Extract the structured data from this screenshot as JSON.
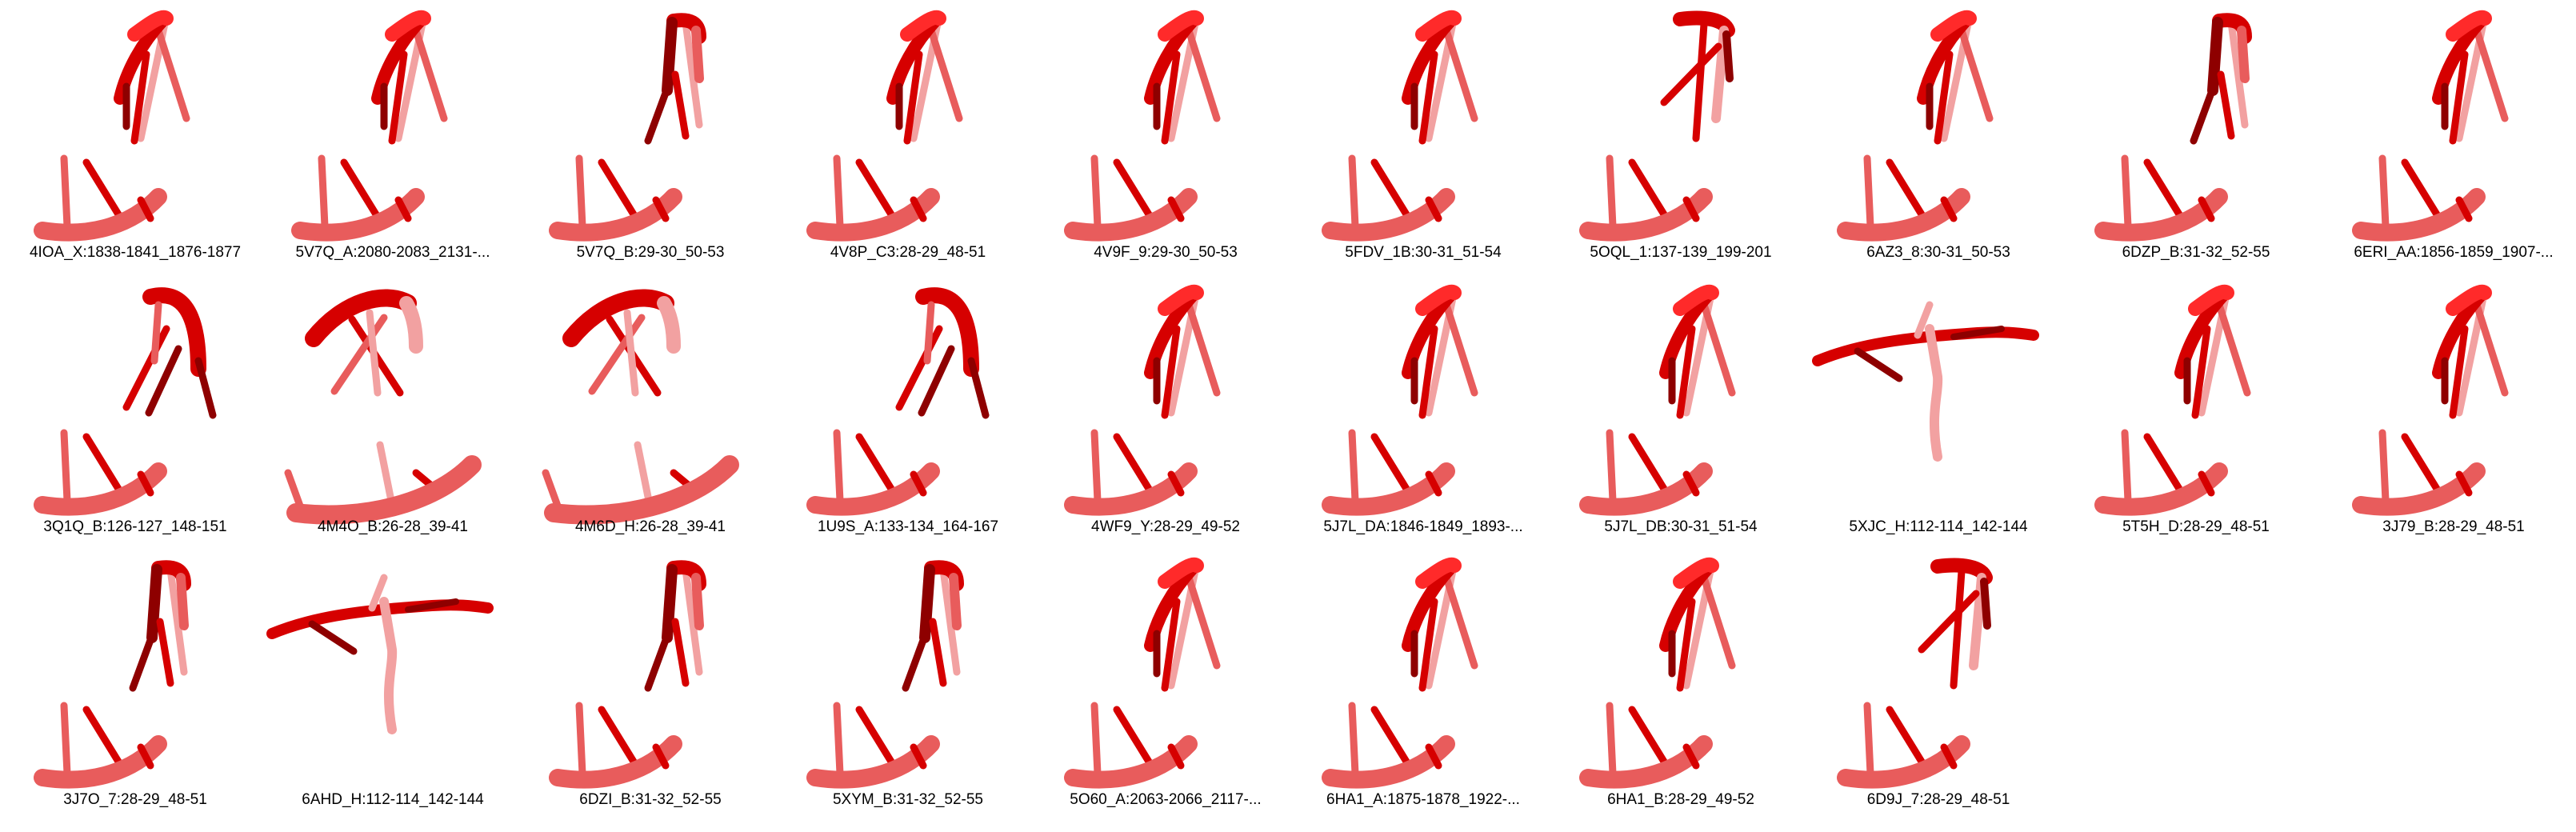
{
  "colors": {
    "dark": "#8e0000",
    "main": "#d60000",
    "bright": "#ff2a2a",
    "light": "#e85c5c",
    "pale": "#f2a1a1",
    "background": "#ffffff"
  },
  "panels": [
    {
      "label": "4IOA_X:1838-1841_1876-1877",
      "icon": "rna-helix-loop-icon",
      "variant": "slant-loop"
    },
    {
      "label": "5V7Q_A:2080-2083_2131-...",
      "icon": "rna-helix-loop-icon",
      "variant": "slant-loop"
    },
    {
      "label": "5V7Q_B:29-30_50-53",
      "icon": "rna-helix-loop-icon",
      "variant": "boxed-loop"
    },
    {
      "label": "4V8P_C3:28-29_48-51",
      "icon": "rna-helix-loop-icon",
      "variant": "slant-loop"
    },
    {
      "label": "4V9F_9:29-30_50-53",
      "icon": "rna-helix-loop-icon",
      "variant": "slant-loop"
    },
    {
      "label": "5FDV_1B:30-31_51-54",
      "icon": "rna-helix-loop-icon",
      "variant": "slant-loop"
    },
    {
      "label": "5OQL_1:137-139_199-201",
      "icon": "rna-helix-loop-icon",
      "variant": "flag-loop"
    },
    {
      "label": "6AZ3_8:30-31_50-53",
      "icon": "rna-helix-loop-icon",
      "variant": "slant-loop"
    },
    {
      "label": "6DZP_B:31-32_52-55",
      "icon": "rna-helix-loop-icon",
      "variant": "boxed-loop"
    },
    {
      "label": "6ERI_AA:1856-1859_1907-...",
      "icon": "rna-helix-loop-icon",
      "variant": "slant-loop"
    },
    {
      "label": "3Q1Q_B:126-127_148-151",
      "icon": "rna-helix-loop-icon",
      "variant": "hook-loop"
    },
    {
      "label": "4M4O_B:26-28_39-41",
      "icon": "rna-helix-loop-icon",
      "variant": "cross-loop"
    },
    {
      "label": "4M6D_H:26-28_39-41",
      "icon": "rna-helix-loop-icon",
      "variant": "cross-loop"
    },
    {
      "label": "1U9S_A:133-134_164-167",
      "icon": "rna-helix-loop-icon",
      "variant": "hook-loop"
    },
    {
      "label": "4WF9_Y:28-29_49-52",
      "icon": "rna-helix-loop-icon",
      "variant": "slant-loop"
    },
    {
      "label": "5J7L_DA:1846-1849_1893-...",
      "icon": "rna-helix-loop-icon",
      "variant": "slant-loop"
    },
    {
      "label": "5J7L_DB:30-31_51-54",
      "icon": "rna-helix-loop-icon",
      "variant": "slant-loop"
    },
    {
      "label": "5XJC_H:112-114_142-144",
      "icon": "rna-helix-loop-icon",
      "variant": "flat-backbone"
    },
    {
      "label": "5T5H_D:28-29_48-51",
      "icon": "rna-helix-loop-icon",
      "variant": "slant-loop"
    },
    {
      "label": "3J79_B:28-29_48-51",
      "icon": "rna-helix-loop-icon",
      "variant": "slant-loop"
    },
    {
      "label": "3J7O_7:28-29_48-51",
      "icon": "rna-helix-loop-icon",
      "variant": "boxed-loop"
    },
    {
      "label": "6AHD_H:112-114_142-144",
      "icon": "rna-helix-loop-icon",
      "variant": "flat-backbone"
    },
    {
      "label": "6DZI_B:31-32_52-55",
      "icon": "rna-helix-loop-icon",
      "variant": "boxed-loop"
    },
    {
      "label": "5XYM_B:31-32_52-55",
      "icon": "rna-helix-loop-icon",
      "variant": "boxed-loop"
    },
    {
      "label": "5O60_A:2063-2066_2117-...",
      "icon": "rna-helix-loop-icon",
      "variant": "slant-loop"
    },
    {
      "label": "6HA1_A:1875-1878_1922-...",
      "icon": "rna-helix-loop-icon",
      "variant": "slant-loop"
    },
    {
      "label": "6HA1_B:28-29_49-52",
      "icon": "rna-helix-loop-icon",
      "variant": "slant-loop"
    },
    {
      "label": "6D9J_7:28-29_48-51",
      "icon": "rna-helix-loop-icon",
      "variant": "flag-loop"
    }
  ]
}
